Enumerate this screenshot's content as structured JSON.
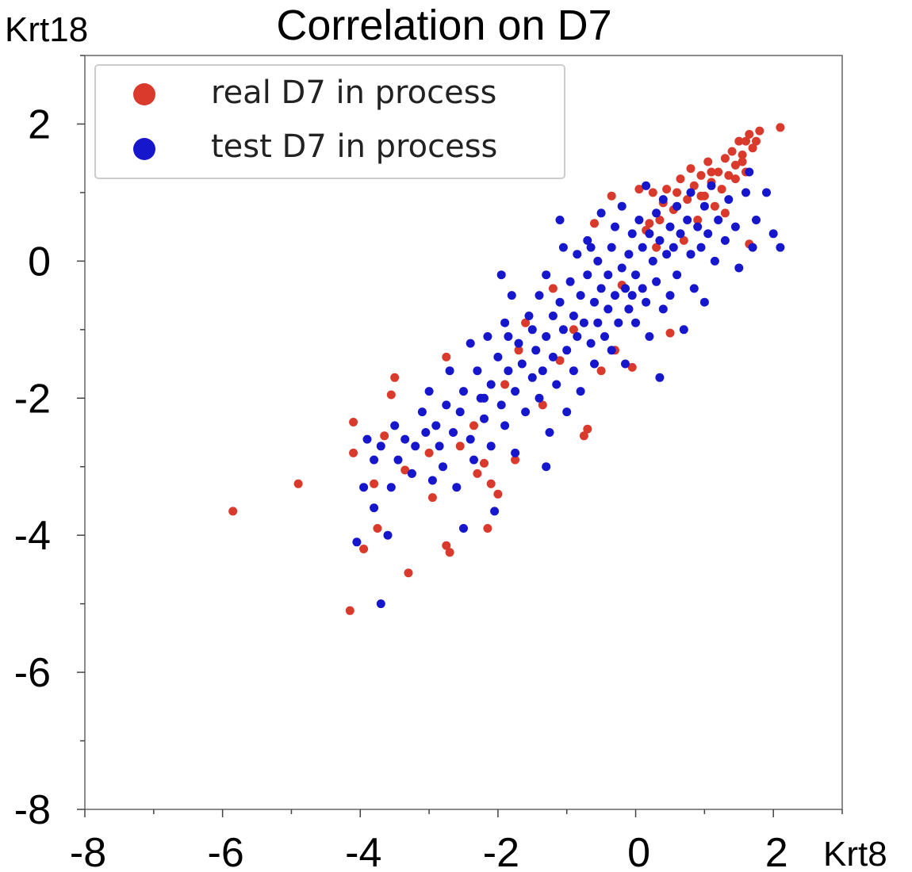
{
  "chart_data": {
    "type": "scatter",
    "title": "Correlation on D7",
    "xlabel": "Krt8",
    "ylabel": "Krt18",
    "xlim": [
      -8,
      3
    ],
    "ylim": [
      -8,
      3
    ],
    "xticks": [
      -8,
      -6,
      -4,
      -2,
      0,
      2
    ],
    "yticks": [
      -8,
      -6,
      -4,
      -2,
      0,
      2
    ],
    "grid": false,
    "legend_position": "top-left",
    "series": [
      {
        "name": "real D7 in process",
        "color": "#d93a2b",
        "points": [
          [
            -5.85,
            -3.65
          ],
          [
            -4.9,
            -3.25
          ],
          [
            -4.15,
            -5.1
          ],
          [
            -4.1,
            -2.35
          ],
          [
            -4.1,
            -2.8
          ],
          [
            -3.95,
            -4.2
          ],
          [
            -3.8,
            -3.25
          ],
          [
            -3.75,
            -3.9
          ],
          [
            -3.65,
            -2.55
          ],
          [
            -3.5,
            -1.7
          ],
          [
            -3.55,
            -1.95
          ],
          [
            -3.35,
            -3.05
          ],
          [
            -3.3,
            -4.55
          ],
          [
            -3.25,
            -3.1
          ],
          [
            -3.0,
            -2.8
          ],
          [
            -2.95,
            -3.45
          ],
          [
            -2.75,
            -1.4
          ],
          [
            -2.75,
            -4.15
          ],
          [
            -2.7,
            -4.25
          ],
          [
            -2.55,
            -2.7
          ],
          [
            -2.35,
            -2.4
          ],
          [
            -2.3,
            -3.1
          ],
          [
            -2.2,
            -2.95
          ],
          [
            -2.15,
            -3.9
          ],
          [
            -2.1,
            -3.25
          ],
          [
            -2.0,
            -3.4
          ],
          [
            -1.9,
            -1.8
          ],
          [
            -1.75,
            -2.9
          ],
          [
            -1.7,
            -1.3
          ],
          [
            -1.6,
            -0.9
          ],
          [
            -1.35,
            -2.1
          ],
          [
            -1.2,
            -0.4
          ],
          [
            -1.1,
            -1.45
          ],
          [
            -0.9,
            -1.0
          ],
          [
            -0.75,
            -2.55
          ],
          [
            -0.7,
            -2.45
          ],
          [
            -0.6,
            0.55
          ],
          [
            -0.5,
            -1.6
          ],
          [
            -0.3,
            -1.3
          ],
          [
            -0.35,
            0.95
          ],
          [
            -0.2,
            -0.35
          ],
          [
            -0.1,
            -0.7
          ],
          [
            0.05,
            1.05
          ],
          [
            -0.05,
            -1.55
          ],
          [
            0.15,
            0.45
          ],
          [
            0.25,
            1.0
          ],
          [
            0.3,
            0.2
          ],
          [
            0.35,
            0.6
          ],
          [
            0.45,
            1.05
          ],
          [
            0.5,
            -1.05
          ],
          [
            0.55,
            0.75
          ],
          [
            0.65,
            1.2
          ],
          [
            0.7,
            0.3
          ],
          [
            0.75,
            0.9
          ],
          [
            0.8,
            1.35
          ],
          [
            0.85,
            1.1
          ],
          [
            0.9,
            0.6
          ],
          [
            0.95,
            1.25
          ],
          [
            1.0,
            0.95
          ],
          [
            1.05,
            1.45
          ],
          [
            1.1,
            1.15
          ],
          [
            1.15,
            0.8
          ],
          [
            1.2,
            1.3
          ],
          [
            1.25,
            1.05
          ],
          [
            1.3,
            1.5
          ],
          [
            1.35,
            1.25
          ],
          [
            1.4,
            1.6
          ],
          [
            1.45,
            1.4
          ],
          [
            1.5,
            1.75
          ],
          [
            1.55,
            1.55
          ],
          [
            1.6,
            1.3
          ],
          [
            1.65,
            1.85
          ],
          [
            1.7,
            1.65
          ],
          [
            1.75,
            1.75
          ],
          [
            1.8,
            1.9
          ],
          [
            2.1,
            1.95
          ],
          [
            1.45,
            1.2
          ],
          [
            1.3,
            0.7
          ],
          [
            1.65,
            0.25
          ],
          [
            0.95,
            0.95
          ],
          [
            0.6,
            1.0
          ],
          [
            0.4,
            0.85
          ],
          [
            1.55,
            1.45
          ],
          [
            1.6,
            1.75
          ],
          [
            0.2,
            0.55
          ],
          [
            1.1,
            1.3
          ]
        ]
      },
      {
        "name": "test D7 in process",
        "color": "#1616cc",
        "points": [
          [
            -4.05,
            -4.1
          ],
          [
            -3.9,
            -2.6
          ],
          [
            -3.95,
            -3.3
          ],
          [
            -3.8,
            -2.9
          ],
          [
            -3.8,
            -3.6
          ],
          [
            -3.7,
            -2.7
          ],
          [
            -3.7,
            -5.0
          ],
          [
            -3.6,
            -4.0
          ],
          [
            -3.55,
            -3.3
          ],
          [
            -3.5,
            -2.4
          ],
          [
            -3.45,
            -2.9
          ],
          [
            -3.35,
            -2.6
          ],
          [
            -3.25,
            -3.1
          ],
          [
            -3.2,
            -2.7
          ],
          [
            -3.1,
            -2.2
          ],
          [
            -3.05,
            -2.5
          ],
          [
            -3.0,
            -1.9
          ],
          [
            -2.95,
            -3.2
          ],
          [
            -2.9,
            -2.4
          ],
          [
            -2.85,
            -2.7
          ],
          [
            -2.8,
            -3.0
          ],
          [
            -2.75,
            -2.1
          ],
          [
            -2.7,
            -1.6
          ],
          [
            -2.65,
            -2.5
          ],
          [
            -2.6,
            -3.3
          ],
          [
            -2.55,
            -2.2
          ],
          [
            -2.5,
            -1.9
          ],
          [
            -2.5,
            -3.9
          ],
          [
            -2.4,
            -1.2
          ],
          [
            -2.4,
            -2.6
          ],
          [
            -2.35,
            -2.9
          ],
          [
            -2.3,
            -1.6
          ],
          [
            -2.25,
            -2.0
          ],
          [
            -2.2,
            -2.3
          ],
          [
            -2.15,
            -1.1
          ],
          [
            -2.1,
            -1.8
          ],
          [
            -2.1,
            -2.7
          ],
          [
            -2.05,
            -3.65
          ],
          [
            -2.0,
            -1.4
          ],
          [
            -1.95,
            -2.1
          ],
          [
            -1.9,
            -0.9
          ],
          [
            -1.9,
            -2.4
          ],
          [
            -1.85,
            -1.6
          ],
          [
            -1.8,
            -0.5
          ],
          [
            -1.75,
            -1.9
          ],
          [
            -1.75,
            -2.8
          ],
          [
            -1.7,
            -1.2
          ],
          [
            -1.65,
            -1.5
          ],
          [
            -1.6,
            -2.2
          ],
          [
            -1.55,
            -0.8
          ],
          [
            -1.5,
            -1.7
          ],
          [
            -1.5,
            -1.0
          ],
          [
            -1.45,
            -1.3
          ],
          [
            -1.4,
            -0.5
          ],
          [
            -1.4,
            -2.0
          ],
          [
            -1.35,
            -1.6
          ],
          [
            -1.3,
            -0.2
          ],
          [
            -1.3,
            -1.1
          ],
          [
            -1.25,
            -2.5
          ],
          [
            -1.2,
            -0.8
          ],
          [
            -1.2,
            -1.4
          ],
          [
            -1.15,
            -1.8
          ],
          [
            -1.1,
            0.6
          ],
          [
            -1.1,
            -0.6
          ],
          [
            -1.05,
            -1.0
          ],
          [
            -1.0,
            -1.3
          ],
          [
            -1.0,
            -2.2
          ],
          [
            -0.95,
            -0.3
          ],
          [
            -0.9,
            -0.8
          ],
          [
            -0.9,
            -1.6
          ],
          [
            -0.85,
            0.1
          ],
          [
            -0.85,
            -1.1
          ],
          [
            -0.8,
            -0.5
          ],
          [
            -0.8,
            -1.9
          ],
          [
            -0.75,
            -0.9
          ],
          [
            -0.7,
            0.3
          ],
          [
            -0.7,
            -0.2
          ],
          [
            -0.65,
            -1.2
          ],
          [
            -0.6,
            -0.6
          ],
          [
            -0.6,
            -1.5
          ],
          [
            -0.55,
            0.0
          ],
          [
            -0.55,
            -0.9
          ],
          [
            -0.5,
            -0.4
          ],
          [
            -0.5,
            0.7
          ],
          [
            -0.45,
            -1.1
          ],
          [
            -0.4,
            -0.2
          ],
          [
            -0.4,
            -0.7
          ],
          [
            -0.35,
            0.2
          ],
          [
            -0.35,
            -1.3
          ],
          [
            -0.3,
            -0.5
          ],
          [
            -0.3,
            0.5
          ],
          [
            -0.25,
            -0.9
          ],
          [
            -0.2,
            -0.1
          ],
          [
            -0.2,
            0.8
          ],
          [
            -0.15,
            -0.4
          ],
          [
            -0.15,
            -1.5
          ],
          [
            -0.1,
            0.1
          ],
          [
            -0.1,
            -0.7
          ],
          [
            -0.05,
            0.4
          ],
          [
            0.0,
            -0.2
          ],
          [
            0.0,
            -0.9
          ],
          [
            0.05,
            0.6
          ],
          [
            0.1,
            -0.4
          ],
          [
            0.1,
            0.2
          ],
          [
            0.15,
            -0.6
          ],
          [
            0.2,
            0.4
          ],
          [
            0.2,
            -1.1
          ],
          [
            0.25,
            0.0
          ],
          [
            0.3,
            0.7
          ],
          [
            0.3,
            -0.3
          ],
          [
            0.35,
            0.3
          ],
          [
            0.4,
            -0.7
          ],
          [
            0.4,
            0.9
          ],
          [
            0.45,
            0.1
          ],
          [
            0.5,
            0.5
          ],
          [
            0.5,
            -0.5
          ],
          [
            0.55,
            0.2
          ],
          [
            0.6,
            0.8
          ],
          [
            0.6,
            -0.2
          ],
          [
            0.65,
            0.4
          ],
          [
            0.7,
            -1.0
          ],
          [
            0.75,
            0.6
          ],
          [
            0.8,
            0.1
          ],
          [
            0.8,
            1.0
          ],
          [
            0.85,
            -0.4
          ],
          [
            0.9,
            0.5
          ],
          [
            0.95,
            0.2
          ],
          [
            1.0,
            0.8
          ],
          [
            1.0,
            -0.6
          ],
          [
            1.05,
            0.4
          ],
          [
            1.1,
            1.1
          ],
          [
            1.15,
            0.0
          ],
          [
            1.2,
            0.6
          ],
          [
            1.3,
            0.3
          ],
          [
            1.35,
            0.9
          ],
          [
            1.45,
            0.5
          ],
          [
            1.5,
            -0.1
          ],
          [
            1.6,
            1.0
          ],
          [
            1.7,
            0.2
          ],
          [
            1.75,
            0.6
          ],
          [
            1.9,
            1.0
          ],
          [
            2.0,
            0.4
          ],
          [
            2.1,
            0.2
          ],
          [
            1.65,
            1.3
          ],
          [
            0.35,
            -1.7
          ],
          [
            -0.05,
            -0.5
          ],
          [
            -1.95,
            -0.2
          ],
          [
            -2.2,
            -2.0
          ],
          [
            -1.3,
            -3.0
          ],
          [
            -1.85,
            -1.1
          ],
          [
            -0.65,
            0.2
          ],
          [
            0.15,
            1.1
          ],
          [
            -1.05,
            0.2
          ]
        ]
      }
    ]
  }
}
